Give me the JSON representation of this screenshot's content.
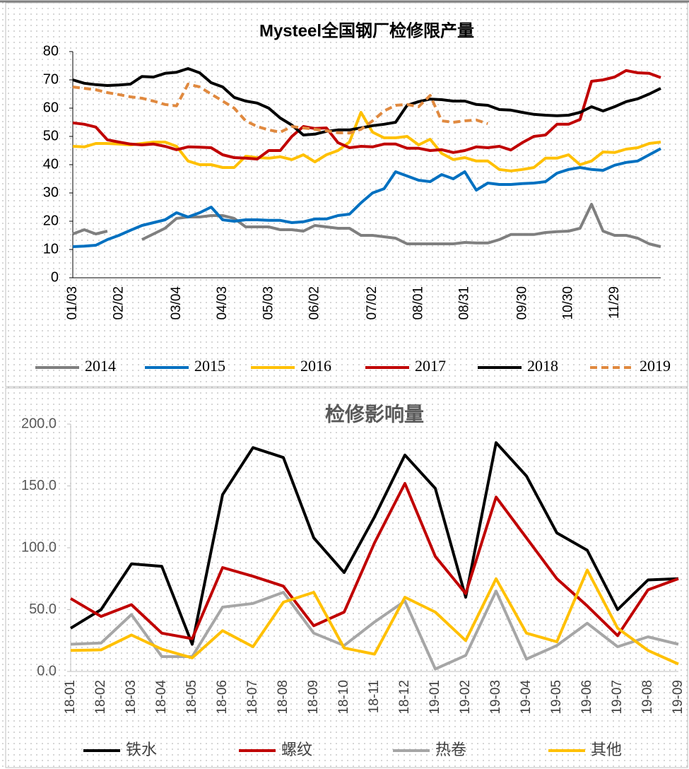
{
  "chart_data": [
    {
      "type": "line",
      "title": "Mysteel全国钢厂检修限产量",
      "legend": "bottom",
      "grid": false,
      "categories": [
        "01/03",
        null,
        null,
        null,
        "02/02",
        null,
        null,
        null,
        null,
        "03/04",
        null,
        null,
        null,
        "04/03",
        null,
        null,
        null,
        "05/03",
        null,
        null,
        null,
        "06/02",
        null,
        null,
        null,
        null,
        "07/02",
        null,
        null,
        null,
        "08/01",
        null,
        null,
        null,
        "08/31",
        null,
        null,
        null,
        null,
        "09/30",
        null,
        null,
        null,
        "10/30",
        null,
        null,
        null,
        "11/29",
        null,
        null,
        null,
        null
      ],
      "ylim": [
        0,
        80
      ],
      "yticks": [
        0,
        10,
        20,
        30,
        40,
        50,
        60,
        70,
        80
      ],
      "series": [
        {
          "name": "2014",
          "color": "#7f7f7f",
          "values": [
            15.5,
            17,
            15.5,
            16.5,
            null,
            null,
            13.5,
            15.5,
            17.5,
            21,
            21.5,
            21.5,
            22,
            22,
            21,
            18,
            18,
            18,
            17,
            17,
            16.5,
            18.5,
            18,
            17.5,
            17.5,
            15,
            15,
            14.5,
            14,
            12,
            12,
            12,
            12,
            12,
            12.5,
            12.3,
            12.3,
            13.5,
            15.3,
            15.3,
            15.3,
            16,
            16.3,
            16.5,
            17.5,
            26,
            16.5,
            15,
            15,
            14,
            12,
            11
          ]
        },
        {
          "name": "2015",
          "color": "#0070c0",
          "values": [
            11,
            11.2,
            11.5,
            13.5,
            15,
            16.8,
            18.5,
            19.5,
            20.5,
            23,
            21.5,
            23,
            25,
            20.5,
            20,
            20.5,
            20.5,
            20.3,
            20.3,
            19.5,
            19.8,
            20.8,
            20.8,
            22,
            22.5,
            26.5,
            30,
            31.5,
            37.5,
            36,
            34.5,
            34,
            36.5,
            35,
            37.5,
            31,
            33.5,
            33,
            33,
            33.3,
            33.5,
            34,
            37,
            38.3,
            39,
            38.3,
            38,
            39.8,
            40.8,
            41.3,
            43.5,
            45.7
          ]
        },
        {
          "name": "2016",
          "color": "#ffc000",
          "values": [
            46.5,
            46.3,
            47.5,
            47.5,
            47.3,
            47,
            47.5,
            48,
            48,
            46.5,
            41.3,
            40,
            40,
            39,
            39,
            43,
            42.5,
            42.3,
            42.8,
            41.8,
            43.5,
            41,
            43.5,
            45,
            48,
            58.5,
            51.5,
            49.5,
            49.5,
            50,
            47,
            49,
            44,
            41.8,
            42.5,
            41.3,
            41.3,
            38.3,
            37.8,
            38.3,
            39,
            42.3,
            42.3,
            43.5,
            40,
            41.3,
            44.5,
            44.3,
            45.5,
            46,
            47.5,
            48
          ]
        },
        {
          "name": "2017",
          "color": "#c00000",
          "values": [
            54.8,
            54.3,
            53.3,
            48.8,
            48,
            47.3,
            47,
            47.3,
            46.5,
            45.3,
            46.3,
            46.2,
            46,
            43.5,
            42.5,
            42.3,
            42,
            45,
            45,
            50,
            53.5,
            52.8,
            53,
            47.8,
            46,
            46.5,
            46.3,
            47.3,
            47.3,
            45.8,
            45.8,
            45,
            45.3,
            44.3,
            45,
            46.3,
            46,
            46.5,
            45.2,
            47.8,
            50,
            50.5,
            54.3,
            54.3,
            56,
            69.5,
            70,
            71,
            73.3,
            72.5,
            72.3,
            70.8
          ]
        },
        {
          "name": "2018",
          "color": "#000000",
          "values": [
            70,
            68.8,
            68.3,
            68,
            68.2,
            68.5,
            71.2,
            71,
            72.3,
            72.7,
            74,
            72.5,
            69,
            67.5,
            63.8,
            62.5,
            61.8,
            60,
            56.5,
            54,
            50.5,
            50.8,
            51.8,
            52.3,
            52.3,
            53,
            53.8,
            54.3,
            55,
            61,
            62.3,
            63.2,
            63,
            62.5,
            62.5,
            61.3,
            61,
            59.5,
            59.3,
            58.5,
            57.8,
            57.5,
            57.3,
            57.5,
            58.5,
            60.5,
            59,
            60.5,
            62.3,
            63.3,
            65,
            67
          ]
        },
        {
          "name": "2019",
          "color": "#e0893f",
          "dashed": true,
          "values": [
            67.5,
            67,
            66.5,
            65.5,
            64.8,
            64,
            63.5,
            62.5,
            61.3,
            60.8,
            68.5,
            67.5,
            65,
            62.5,
            60,
            55.5,
            53.5,
            52.3,
            51.5,
            53.5,
            53,
            52.5,
            52,
            51.3,
            51.2,
            52.5,
            55.5,
            59,
            61,
            61.3,
            60.5,
            64.5,
            55.5,
            55,
            55.5,
            55.8,
            54.5,
            null,
            null,
            null,
            null,
            null,
            null,
            null,
            null,
            null,
            null,
            null,
            null,
            null,
            null,
            null
          ]
        }
      ]
    },
    {
      "type": "line",
      "title": "检修影响量",
      "legend": "bottom",
      "grid": false,
      "categories": [
        "18-01",
        "18-02",
        "18-03",
        "18-04",
        "18-05",
        "18-06",
        "18-07",
        "18-08",
        "18-09",
        "18-10",
        "18-11",
        "18-12",
        "19-01",
        "19-02",
        "19-03",
        "19-04",
        "19-05",
        "19-06",
        "19-07",
        "19-08",
        "19-09"
      ],
      "ylim": [
        0,
        200
      ],
      "yticks": [
        {
          "value": 0,
          "label": "0.0"
        },
        {
          "value": 50,
          "label": "50.0"
        },
        {
          "value": 100,
          "label": "100.0"
        },
        {
          "value": 150,
          "label": "150.0"
        },
        {
          "value": 200,
          "label": "200.0"
        }
      ],
      "series": [
        {
          "name": "铁水",
          "color": "#000000",
          "values": [
            35,
            50,
            87,
            85,
            22,
            143,
            181,
            173,
            108,
            80,
            125,
            175,
            148,
            60,
            185,
            158,
            112,
            98,
            50,
            74,
            75
          ]
        },
        {
          "name": "螺纹",
          "color": "#c00000",
          "values": [
            59,
            44.5,
            54,
            31,
            26.5,
            84,
            77,
            69,
            37,
            48,
            104,
            152,
            93,
            63,
            141,
            108,
            75,
            53,
            29,
            66,
            75
          ]
        },
        {
          "name": "热卷",
          "color": "#a6a6a6",
          "values": [
            22,
            23,
            46,
            12,
            12,
            52,
            55,
            64,
            31,
            21,
            40,
            57,
            2,
            13,
            65,
            10,
            21,
            39,
            20,
            28,
            22
          ]
        },
        {
          "name": "其他",
          "color": "#ffc000",
          "values": [
            17,
            17.5,
            29.5,
            18,
            11,
            33,
            20,
            56,
            64,
            19,
            14,
            60,
            48,
            25,
            75,
            31,
            24,
            82,
            35,
            17,
            6
          ]
        }
      ]
    }
  ]
}
